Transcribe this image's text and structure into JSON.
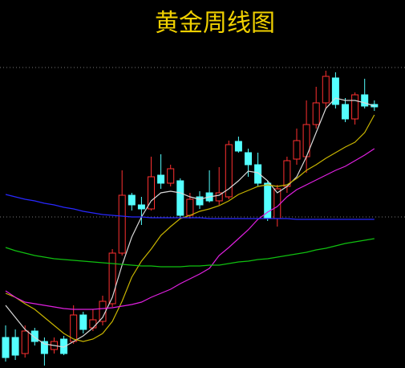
{
  "chart_data": {
    "type": "candlestick",
    "title": "黄金周线图",
    "ylim": [
      0,
      458
    ],
    "up_color": "#ff3030",
    "down_color": "#54ffff",
    "open": [
      38,
      38,
      18,
      46,
      33,
      23,
      36,
      33,
      66,
      50,
      58,
      80,
      143,
      215,
      203,
      198,
      240,
      230,
      233,
      190,
      213,
      218,
      208,
      213,
      282,
      268,
      253,
      230,
      186,
      226,
      260,
      263,
      303,
      330,
      361,
      328,
      310,
      340,
      328
    ],
    "close": [
      13,
      16,
      46,
      33,
      18,
      33,
      18,
      66,
      48,
      60,
      83,
      143,
      215,
      203,
      198,
      238,
      230,
      248,
      190,
      210,
      203,
      208,
      218,
      278,
      270,
      253,
      230,
      186,
      223,
      258,
      283,
      303,
      330,
      363,
      328,
      310,
      340,
      326,
      325
    ],
    "high": [
      53,
      48,
      53,
      50,
      38,
      38,
      40,
      78,
      70,
      73,
      90,
      148,
      246,
      218,
      213,
      263,
      266,
      253,
      236,
      218,
      220,
      246,
      250,
      283,
      288,
      273,
      268,
      233,
      228,
      263,
      298,
      333,
      350,
      370,
      368,
      336,
      343,
      360,
      333
    ],
    "low": [
      8,
      10,
      13,
      28,
      3,
      18,
      16,
      30,
      43,
      46,
      53,
      76,
      140,
      196,
      178,
      196,
      223,
      226,
      186,
      186,
      198,
      206,
      203,
      210,
      268,
      238,
      226,
      183,
      176,
      218,
      253,
      243,
      298,
      323,
      323,
      306,
      303,
      323,
      320
    ],
    "series": [
      {
        "color": "#d8d8d8",
        "values": [
          78,
          63,
          48,
          38,
          30,
          28,
          26,
          33,
          40,
          50,
          63,
          88,
          128,
          163,
          188,
          208,
          218,
          220,
          218,
          213,
          210,
          213,
          215,
          223,
          233,
          245,
          243,
          233,
          218,
          226,
          238,
          263,
          293,
          323,
          336,
          333,
          333,
          330,
          326
        ]
      },
      {
        "color": "#c8b400",
        "values": [
          93,
          88,
          80,
          73,
          63,
          53,
          43,
          36,
          33,
          36,
          43,
          58,
          83,
          113,
          133,
          148,
          165,
          176,
          186,
          190,
          195,
          198,
          202,
          208,
          216,
          221,
          226,
          228,
          226,
          228,
          236,
          246,
          253,
          261,
          268,
          275,
          281,
          293,
          315
        ]
      },
      {
        "color": "#e020e0",
        "values": [
          96,
          88,
          82,
          80,
          78,
          76,
          74,
          73,
          73,
          73,
          74,
          75,
          77,
          79,
          82,
          88,
          93,
          98,
          105,
          111,
          117,
          124,
          140,
          150,
          161,
          172,
          185,
          194,
          201,
          213,
          222,
          228,
          234,
          240,
          246,
          251,
          258,
          265,
          273
        ]
      },
      {
        "color": "#10c010",
        "values": [
          150,
          146,
          143,
          140,
          138,
          136,
          135,
          134,
          133,
          132,
          131,
          130,
          129,
          128,
          127,
          127,
          126,
          126,
          126,
          127,
          127,
          128,
          128,
          130,
          132,
          133,
          135,
          136,
          138,
          140,
          142,
          144,
          147,
          149,
          152,
          155,
          157,
          159,
          161
        ]
      },
      {
        "color": "#2828ff",
        "values": [
          216,
          213,
          210,
          208,
          205,
          203,
          200,
          198,
          195,
          193,
          191,
          190,
          189,
          188,
          188,
          187,
          187,
          187,
          187,
          187,
          187,
          186,
          186,
          186,
          186,
          186,
          186,
          186,
          186,
          186,
          185,
          185,
          185,
          185,
          185,
          185,
          185,
          185,
          185
        ]
      }
    ]
  }
}
